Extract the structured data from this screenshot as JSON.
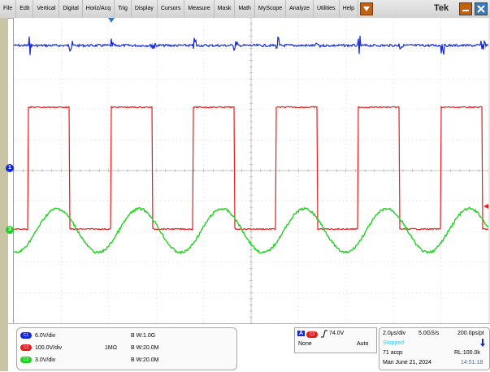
{
  "menu": {
    "items": [
      "File",
      "Edit",
      "Vertical",
      "Digital",
      "Horiz/Acq",
      "Trig",
      "Display",
      "Cursors",
      "Measure",
      "Mask",
      "Math",
      "MyScope",
      "Analyze",
      "Utilities",
      "Help"
    ],
    "brand": "Tek"
  },
  "channels": [
    {
      "badge": "C1",
      "scale": "6.0V/div",
      "coupling": "",
      "bw": "B W:1.0G",
      "color": "#1428d8"
    },
    {
      "badge": "C2",
      "scale": "100.0V/div",
      "coupling": "1MΩ",
      "bw": "B W:20.0M",
      "color": "#e81c1c"
    },
    {
      "badge": "C3",
      "scale": "3.0V/div",
      "coupling": "",
      "bw": "B W:20.0M",
      "color": "#22d022"
    }
  ],
  "markers": {
    "ch1": "1",
    "ch3": "3"
  },
  "trigger": {
    "mode_letter": "A",
    "source": "C2",
    "level": "74.0V",
    "type": "None",
    "mode": "Auto"
  },
  "timebase": {
    "scale": "2.0μs/div",
    "rate": "5.0GS/s",
    "resolution": "200.0ps/pt",
    "state": "Stopped",
    "acqs": "71 acqs",
    "record_length": "RL:100.0k",
    "date": "Man    June 21, 2024",
    "time": "14:51:18"
  },
  "colors": {
    "ch1": "#1428d8",
    "ch2": "#e81c1c",
    "ch3": "#22d022",
    "state": "#39c5e8",
    "accent": "#c2610f"
  }
}
